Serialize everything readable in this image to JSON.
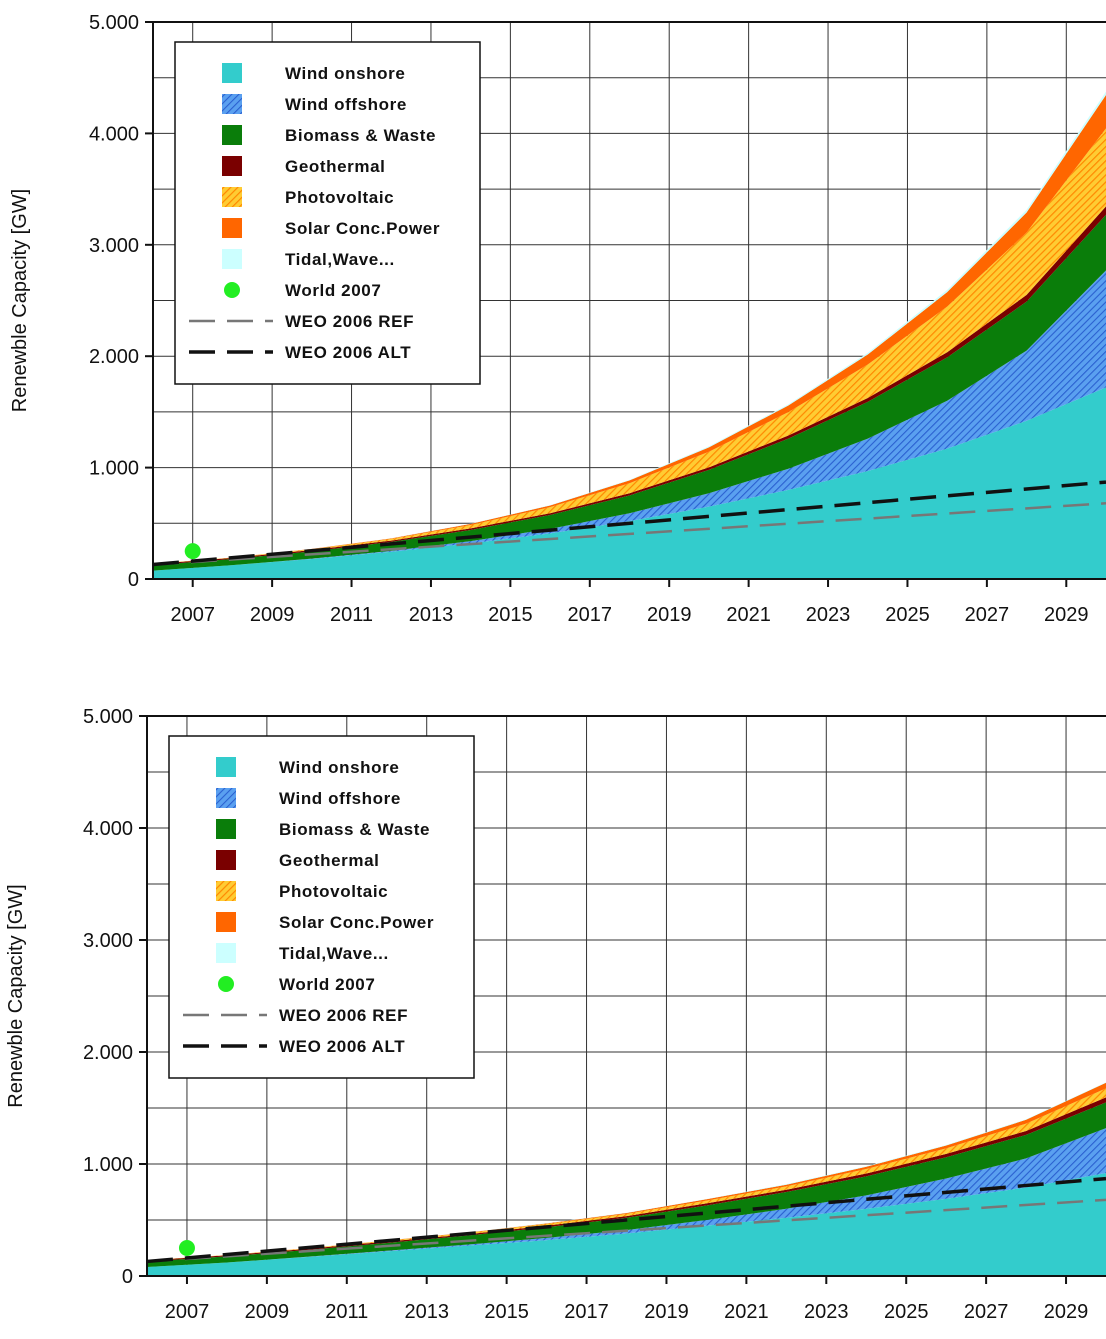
{
  "colors": {
    "wind_onshore": "#33cccc",
    "wind_offshore": "#3d7fe0",
    "biomass": "#0a7d0a",
    "geothermal": "#7a0000",
    "photovoltaic": "#ff9900",
    "solar_conc": "#ff6600",
    "tidal": "#ccffff",
    "world_2007": "#22ee22",
    "weo_ref": "#777777",
    "weo_alt": "#111111"
  },
  "chart_data": [
    {
      "type": "area",
      "stacked": true,
      "title": "",
      "xlabel": "",
      "ylabel": "Renewble Capacity [GW]",
      "xlim": [
        2006,
        2030
      ],
      "ylim": [
        0,
        5000
      ],
      "x_ticks": [
        "2007",
        "2009",
        "2011",
        "2013",
        "2015",
        "2017",
        "2019",
        "2021",
        "2023",
        "2025",
        "2027",
        "2029"
      ],
      "y_ticks": [
        "0",
        "1.000",
        "2.000",
        "3.000",
        "4.000",
        "5.000"
      ],
      "grid": true,
      "legend_position": "top-left",
      "legend": [
        "Wind onshore",
        "Wind offshore",
        "Biomass & Waste",
        "Geothermal",
        "Photovoltaic",
        "Solar Conc.Power",
        "Tidal,Wave...",
        "World 2007",
        "WEO 2006 REF",
        "WEO 2006 ALT"
      ],
      "x": [
        2006,
        2008,
        2010,
        2012,
        2014,
        2016,
        2018,
        2020,
        2022,
        2024,
        2026,
        2028,
        2030
      ],
      "series": [
        {
          "name": "Wind onshore",
          "values": [
            75,
            125,
            180,
            245,
            320,
            410,
            520,
            650,
            800,
            970,
            1170,
            1420,
            1720
          ]
        },
        {
          "name": "Wind offshore",
          "values": [
            0,
            0,
            3,
            8,
            20,
            40,
            70,
            120,
            190,
            290,
            430,
            630,
            1050
          ]
        },
        {
          "name": "Biomass & Waste",
          "values": [
            50,
            55,
            65,
            80,
            100,
            125,
            160,
            210,
            270,
            330,
            390,
            440,
            500
          ]
        },
        {
          "name": "Geothermal",
          "values": [
            10,
            10,
            12,
            12,
            15,
            15,
            20,
            22,
            28,
            35,
            45,
            60,
            75
          ]
        },
        {
          "name": "Photovoltaic",
          "values": [
            2,
            3,
            8,
            15,
            30,
            55,
            90,
            140,
            210,
            300,
            410,
            560,
            700
          ]
        },
        {
          "name": "Solar Conc.Power",
          "values": [
            0,
            0,
            2,
            5,
            10,
            15,
            25,
            40,
            60,
            90,
            130,
            180,
            300
          ]
        },
        {
          "name": "Tidal,Wave...",
          "values": [
            0,
            0,
            0,
            1,
            2,
            3,
            5,
            8,
            10,
            15,
            20,
            25,
            30
          ]
        }
      ],
      "points": [
        {
          "name": "World 2007",
          "x": 2007,
          "y": 250
        }
      ],
      "lines": [
        {
          "name": "WEO 2006 REF",
          "x": [
            2006,
            2030
          ],
          "y": [
            130,
            680
          ]
        },
        {
          "name": "WEO 2006 ALT",
          "x": [
            2006,
            2030
          ],
          "y": [
            130,
            870
          ]
        }
      ]
    },
    {
      "type": "area",
      "stacked": true,
      "title": "",
      "xlabel": "",
      "ylabel": "Renewble Capacity [GW]",
      "xlim": [
        2006,
        2030
      ],
      "ylim": [
        0,
        5000
      ],
      "x_ticks": [
        "2007",
        "2009",
        "2011",
        "2013",
        "2015",
        "2017",
        "2019",
        "2021",
        "2023",
        "2025",
        "2027",
        "2029"
      ],
      "y_ticks": [
        "0",
        "1.000",
        "2.000",
        "3.000",
        "4.000",
        "5.000"
      ],
      "grid": true,
      "legend_position": "top-left",
      "legend": [
        "Wind onshore",
        "Wind offshore",
        "Biomass & Waste",
        "Geothermal",
        "Photovoltaic",
        "Solar Conc.Power",
        "Tidal,Wave...",
        "World 2007",
        "WEO 2006 REF",
        "WEO 2006 ALT"
      ],
      "x": [
        2006,
        2008,
        2010,
        2012,
        2014,
        2016,
        2018,
        2020,
        2022,
        2024,
        2026,
        2028,
        2030
      ],
      "series": [
        {
          "name": "Wind onshore",
          "values": [
            80,
            120,
            170,
            220,
            270,
            320,
            380,
            450,
            520,
            600,
            690,
            790,
            920
          ]
        },
        {
          "name": "Wind offshore",
          "values": [
            0,
            0,
            2,
            5,
            10,
            20,
            30,
            50,
            80,
            120,
            180,
            260,
            400
          ]
        },
        {
          "name": "Biomass & Waste",
          "values": [
            50,
            55,
            60,
            70,
            80,
            95,
            110,
            130,
            150,
            170,
            190,
            210,
            230
          ]
        },
        {
          "name": "Geothermal",
          "values": [
            10,
            10,
            10,
            12,
            12,
            15,
            15,
            18,
            20,
            25,
            30,
            35,
            45
          ]
        },
        {
          "name": "Photovoltaic",
          "values": [
            2,
            3,
            5,
            8,
            12,
            15,
            20,
            25,
            30,
            40,
            50,
            65,
            80
          ]
        },
        {
          "name": "Solar Conc.Power",
          "values": [
            0,
            0,
            1,
            2,
            3,
            5,
            8,
            12,
            15,
            20,
            25,
            35,
            50
          ]
        },
        {
          "name": "Tidal,Wave...",
          "values": [
            0,
            0,
            0,
            1,
            1,
            2,
            2,
            3,
            5,
            5,
            5,
            5,
            5
          ]
        }
      ],
      "points": [
        {
          "name": "World 2007",
          "x": 2007,
          "y": 250
        }
      ],
      "lines": [
        {
          "name": "WEO 2006 REF",
          "x": [
            2006,
            2030
          ],
          "y": [
            130,
            680
          ]
        },
        {
          "name": "WEO 2006 ALT",
          "x": [
            2006,
            2030
          ],
          "y": [
            130,
            870
          ]
        }
      ]
    }
  ]
}
